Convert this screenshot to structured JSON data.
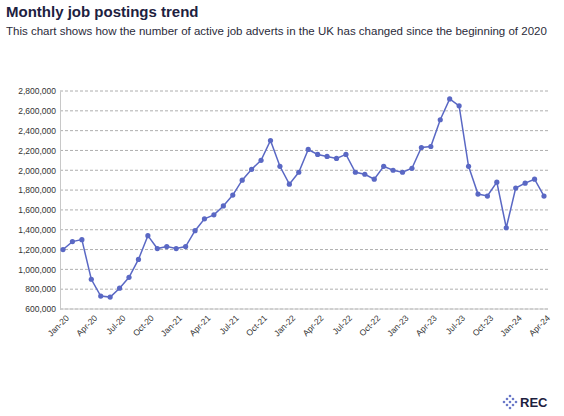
{
  "chart_data": {
    "type": "line",
    "title": "Monthly job postings trend",
    "subtitle": "This chart shows how the number of active job adverts in the UK has changed since the beginning of 2020",
    "logo": "REC",
    "categories": [
      "Jan-20",
      null,
      null,
      "Apr-20",
      null,
      null,
      "Jul-20",
      null,
      null,
      "Oct-20",
      null,
      null,
      "Jan-21",
      null,
      null,
      "Apr-21",
      null,
      null,
      "Jul-21",
      null,
      null,
      "Oct-21",
      null,
      null,
      "Jan-22",
      null,
      null,
      "Apr-22",
      null,
      null,
      "Jul-22",
      null,
      null,
      "Oct-22",
      null,
      null,
      "Jan-23",
      null,
      null,
      "Apr-23",
      null,
      null,
      "Jul-23",
      null,
      null,
      "Oct-23",
      null,
      null,
      "Jan-24",
      null,
      null,
      "Apr-24"
    ],
    "values": [
      1200000,
      1280000,
      1300000,
      900000,
      730000,
      720000,
      810000,
      920000,
      1100000,
      1340000,
      1210000,
      1230000,
      1210000,
      1230000,
      1390000,
      1510000,
      1550000,
      1640000,
      1750000,
      1900000,
      2010000,
      2100000,
      2300000,
      2040000,
      1860000,
      1980000,
      2210000,
      2160000,
      2140000,
      2120000,
      2160000,
      1980000,
      1960000,
      1910000,
      2040000,
      2000000,
      1980000,
      2020000,
      2230000,
      2240000,
      2510000,
      2720000,
      2650000,
      2040000,
      1760000,
      1740000,
      1880000,
      1420000,
      1820000,
      1870000,
      1910000,
      1740000
    ],
    "color": "#5a68c4",
    "marker": "circle",
    "ylim": [
      600000,
      2800000
    ],
    "yticks": [
      {
        "value": 600000,
        "label": "600,000"
      },
      {
        "value": 800000,
        "label": "800,000"
      },
      {
        "value": 1000000,
        "label": "1,000,000"
      },
      {
        "value": 1200000,
        "label": "1,200,000"
      },
      {
        "value": 1400000,
        "label": "1,400,000"
      },
      {
        "value": 1600000,
        "label": "1,600,000"
      },
      {
        "value": 1800000,
        "label": "1,800,000"
      },
      {
        "value": 2000000,
        "label": "2,000,000"
      },
      {
        "value": 2200000,
        "label": "2,200,000"
      },
      {
        "value": 2400000,
        "label": "2,400,000"
      },
      {
        "value": 2600000,
        "label": "2,600,000"
      },
      {
        "value": 2800000,
        "label": "2,800,000"
      }
    ],
    "grid": true
  }
}
